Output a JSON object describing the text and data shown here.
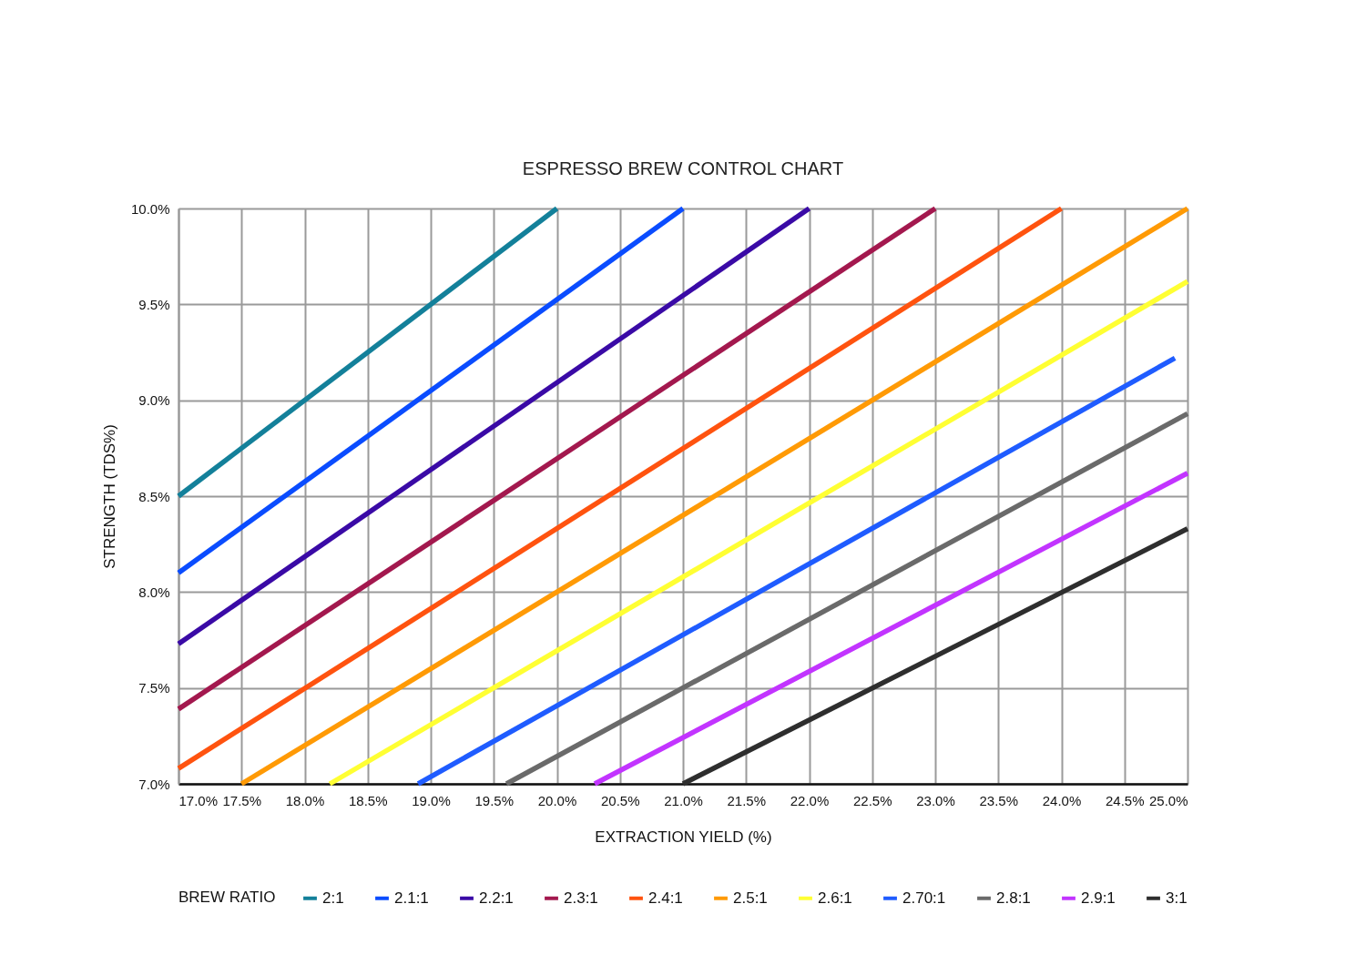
{
  "chart_data": {
    "type": "line",
    "title": "ESPRESSO BREW CONTROL CHART",
    "xlabel": "EXTRACTION YIELD (%)",
    "ylabel": "STRENGTH (TDS%)",
    "legend_title": "BREW RATIO",
    "xlim": [
      17.0,
      25.0
    ],
    "ylim": [
      7.0,
      10.0
    ],
    "xticks": [
      {
        "value": 17.0,
        "label": "17.0%"
      },
      {
        "value": 17.5,
        "label": "17.5%"
      },
      {
        "value": 18.0,
        "label": "18.0%"
      },
      {
        "value": 18.5,
        "label": "18.5%"
      },
      {
        "value": 19.0,
        "label": "19.0%"
      },
      {
        "value": 19.5,
        "label": "19.5%"
      },
      {
        "value": 20.0,
        "label": "20.0%"
      },
      {
        "value": 20.5,
        "label": "20.5%"
      },
      {
        "value": 21.0,
        "label": "21.0%"
      },
      {
        "value": 21.5,
        "label": "21.5%"
      },
      {
        "value": 22.0,
        "label": "22.0%"
      },
      {
        "value": 22.5,
        "label": "22.5%"
      },
      {
        "value": 23.0,
        "label": "23.0%"
      },
      {
        "value": 23.5,
        "label": "23.5%"
      },
      {
        "value": 24.0,
        "label": "24.0%"
      },
      {
        "value": 24.5,
        "label": "24.5%"
      },
      {
        "value": 25.0,
        "label": "25.0%"
      }
    ],
    "yticks": [
      {
        "value": 7.0,
        "label": "7.0%"
      },
      {
        "value": 7.5,
        "label": "7.5%"
      },
      {
        "value": 8.0,
        "label": "8.0%"
      },
      {
        "value": 8.5,
        "label": "8.5%"
      },
      {
        "value": 9.0,
        "label": "9.0%"
      },
      {
        "value": 9.5,
        "label": "9.5%"
      },
      {
        "value": 10.0,
        "label": "10.0%"
      }
    ],
    "grid": true,
    "legend": "bottom",
    "series": [
      {
        "name": "2:1",
        "color": "#13809a",
        "x": [
          17.0,
          20.0
        ],
        "values": [
          8.5,
          10.0
        ]
      },
      {
        "name": "2.1:1",
        "color": "#0a4cff",
        "x": [
          17.0,
          21.0
        ],
        "values": [
          8.1,
          10.0
        ]
      },
      {
        "name": "2.2:1",
        "color": "#3a0aa6",
        "x": [
          17.0,
          22.0
        ],
        "values": [
          7.73,
          10.0
        ]
      },
      {
        "name": "2.3:1",
        "color": "#a3184e",
        "x": [
          17.0,
          23.0
        ],
        "values": [
          7.39,
          10.0
        ]
      },
      {
        "name": "2.4:1",
        "color": "#ff530f",
        "x": [
          17.0,
          24.0
        ],
        "values": [
          7.08,
          10.0
        ]
      },
      {
        "name": "2.5:1",
        "color": "#ff9a05",
        "x": [
          17.5,
          25.0
        ],
        "values": [
          7.0,
          10.0
        ]
      },
      {
        "name": "2.6:1",
        "color": "#ffff33",
        "x": [
          18.2,
          25.0
        ],
        "values": [
          7.0,
          9.62
        ]
      },
      {
        "name": "2.70:1",
        "color": "#1f5cff",
        "x": [
          18.9,
          24.9
        ],
        "values": [
          7.0,
          9.22
        ]
      },
      {
        "name": "2.8:1",
        "color": "#6a6a6a",
        "x": [
          19.6,
          25.0
        ],
        "values": [
          7.0,
          8.93
        ]
      },
      {
        "name": "2.9:1",
        "color": "#c234ff",
        "x": [
          20.3,
          25.0
        ],
        "values": [
          7.0,
          8.62
        ]
      },
      {
        "name": "3:1",
        "color": "#2e2e2e",
        "x": [
          21.0,
          25.0
        ],
        "values": [
          7.0,
          8.33
        ]
      }
    ]
  }
}
